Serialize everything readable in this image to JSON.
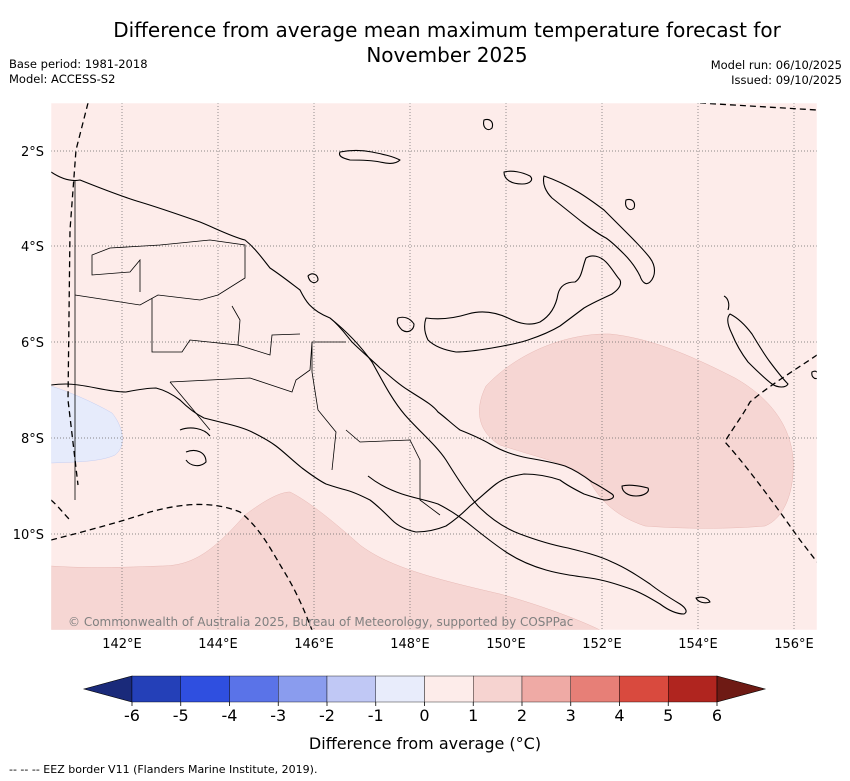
{
  "title_line1": "Difference from average mean maximum temperature forecast for",
  "title_line2": "November 2025",
  "base_period": "Base period: 1981-2018",
  "model": "Model: ACCESS-S2",
  "model_run": "Model run: 06/10/2025",
  "issued": "Issued: 09/10/2025",
  "copyright": "© Commonwealth of Australia 2025, Bureau of Meteorology, supported by COSPPac",
  "lat_labels": [
    "2°S",
    "4°S",
    "6°S",
    "8°S",
    "10°S"
  ],
  "lon_labels": [
    "142°E",
    "144°E",
    "146°E",
    "148°E",
    "150°E",
    "152°E",
    "154°E",
    "156°E"
  ],
  "colorbar": {
    "ticks": [
      "-6",
      "-5",
      "-4",
      "-3",
      "-2",
      "-1",
      "0",
      "1",
      "2",
      "3",
      "4",
      "5",
      "6"
    ],
    "colors": [
      "#1a2a7a",
      "#2440b8",
      "#2f4fe0",
      "#5a73e8",
      "#8a9cee",
      "#c0c8f5",
      "#e8ecfb",
      "#fdecea",
      "#f6d3d0",
      "#efaaa5",
      "#e77f77",
      "#d94a3e",
      "#b0251f",
      "#6e1a14"
    ],
    "label": "Difference from average (°C)"
  },
  "legend_text": "-- -- -- EEZ border V11 (Flanders Marine Institute, 2019)."
}
